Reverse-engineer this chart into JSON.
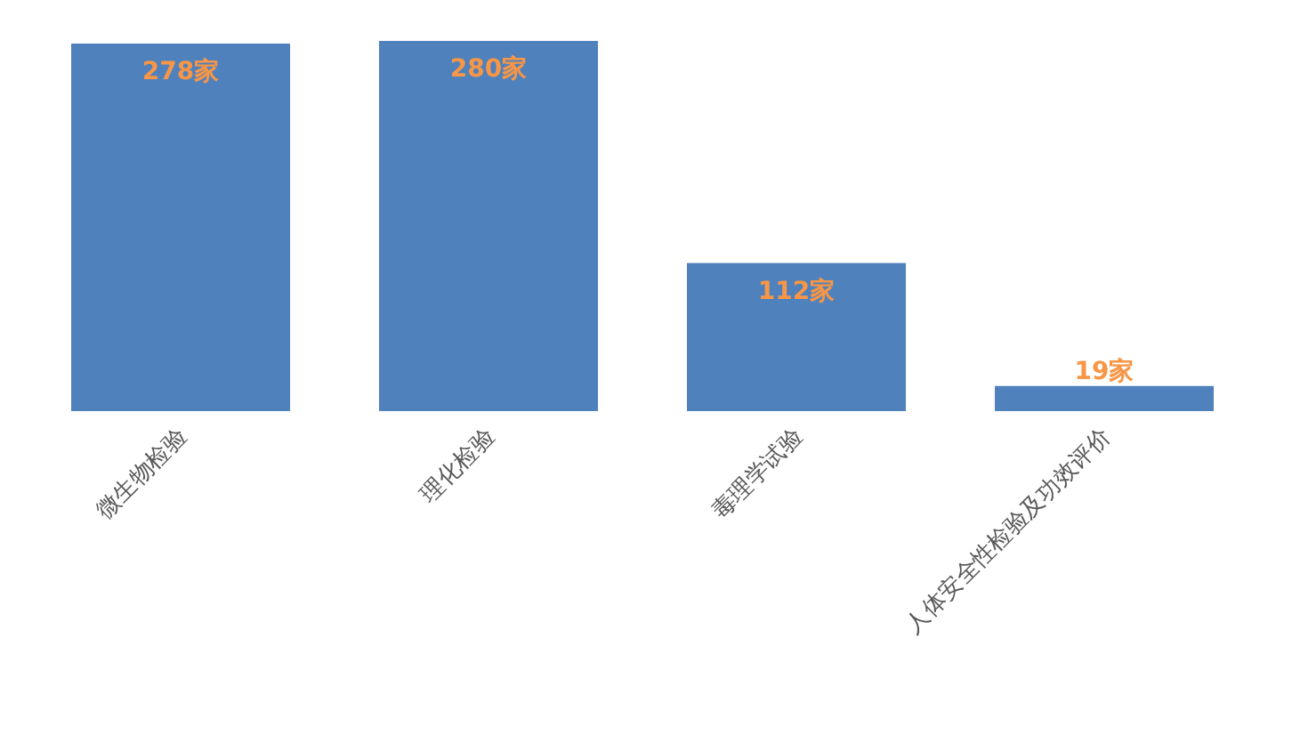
{
  "chart_data": {
    "type": "bar",
    "categories": [
      "微生物检验",
      "理化检验",
      "毒理学试验",
      "人体安全性检验及功效评价"
    ],
    "values": [
      278,
      280,
      112,
      19
    ],
    "value_labels": [
      "278家",
      "280家",
      "112家",
      "19家"
    ],
    "color": "#4f81bd"
  }
}
